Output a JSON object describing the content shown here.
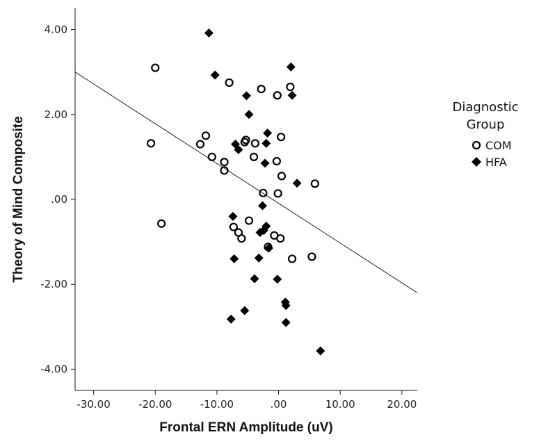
{
  "chart_data": {
    "type": "scatter",
    "xlabel": "Frontal ERN Amplitude (uV)",
    "ylabel": "Theory of Mind Composite",
    "xlim": [
      -33,
      22.5
    ],
    "ylim": [
      -4.5,
      4.5
    ],
    "x_ticks": [
      -30,
      -20,
      -10,
      0,
      10,
      20
    ],
    "x_tick_labels": [
      "-30.00",
      "-20.00",
      "-10.00",
      ".00",
      "10.00",
      "20.00"
    ],
    "y_ticks": [
      4,
      2,
      0,
      -2,
      -4
    ],
    "y_tick_labels": [
      "4.00",
      "2.00",
      ".00",
      "-2.00",
      "-4.00"
    ],
    "grid": false,
    "legend": {
      "title_line1": "Diagnostic",
      "title_line2": "Group",
      "placement": "right",
      "entries": [
        {
          "label": "COM",
          "marker": "circle-open"
        },
        {
          "label": "HFA",
          "marker": "diamond-filled"
        }
      ]
    },
    "fit_line": {
      "x1": -33,
      "y1": 3.0,
      "x2": 22.5,
      "y2": -2.2
    },
    "series": [
      {
        "name": "COM",
        "marker": "circle-open",
        "points": [
          [
            -20.0,
            3.1
          ],
          [
            -8.0,
            2.75
          ],
          [
            -2.8,
            2.6
          ],
          [
            -0.2,
            2.45
          ],
          [
            1.9,
            2.65
          ],
          [
            -11.8,
            1.5
          ],
          [
            -12.7,
            1.3
          ],
          [
            -20.7,
            1.32
          ],
          [
            -5.3,
            1.4
          ],
          [
            -5.5,
            1.35
          ],
          [
            -3.8,
            1.32
          ],
          [
            0.4,
            1.47
          ],
          [
            -10.8,
            1.0
          ],
          [
            -8.8,
            0.88
          ],
          [
            -4.0,
            1.0
          ],
          [
            -0.3,
            0.9
          ],
          [
            -8.8,
            0.68
          ],
          [
            0.5,
            0.55
          ],
          [
            -2.5,
            0.15
          ],
          [
            -0.1,
            0.14
          ],
          [
            5.9,
            0.37
          ],
          [
            -19.0,
            -0.57
          ],
          [
            -4.8,
            -0.5
          ],
          [
            -7.3,
            -0.65
          ],
          [
            -6.5,
            -0.78
          ],
          [
            -6.0,
            -0.92
          ],
          [
            -0.7,
            -0.85
          ],
          [
            0.3,
            -0.92
          ],
          [
            -1.7,
            -1.12
          ],
          [
            2.2,
            -1.4
          ],
          [
            5.4,
            -1.35
          ]
        ]
      },
      {
        "name": "HFA",
        "marker": "diamond-filled",
        "points": [
          [
            -11.3,
            3.92
          ],
          [
            2.0,
            3.12
          ],
          [
            -10.3,
            2.93
          ],
          [
            2.2,
            2.45
          ],
          [
            -5.2,
            2.44
          ],
          [
            -4.8,
            2.0
          ],
          [
            -1.8,
            1.56
          ],
          [
            -7.0,
            1.3
          ],
          [
            -2.0,
            1.32
          ],
          [
            -6.5,
            1.17
          ],
          [
            -2.2,
            0.85
          ],
          [
            3.0,
            0.38
          ],
          [
            -2.6,
            -0.15
          ],
          [
            -7.4,
            -0.4
          ],
          [
            -2.0,
            -0.63
          ],
          [
            -2.4,
            -0.73
          ],
          [
            -3.0,
            -0.78
          ],
          [
            -1.6,
            -1.15
          ],
          [
            -7.2,
            -1.4
          ],
          [
            -3.2,
            -1.38
          ],
          [
            -3.9,
            -1.87
          ],
          [
            -0.2,
            -1.88
          ],
          [
            1.1,
            -2.42
          ],
          [
            1.2,
            -2.5
          ],
          [
            -5.5,
            -2.62
          ],
          [
            -7.7,
            -2.82
          ],
          [
            1.2,
            -2.9
          ],
          [
            6.8,
            -3.57
          ]
        ]
      }
    ]
  }
}
